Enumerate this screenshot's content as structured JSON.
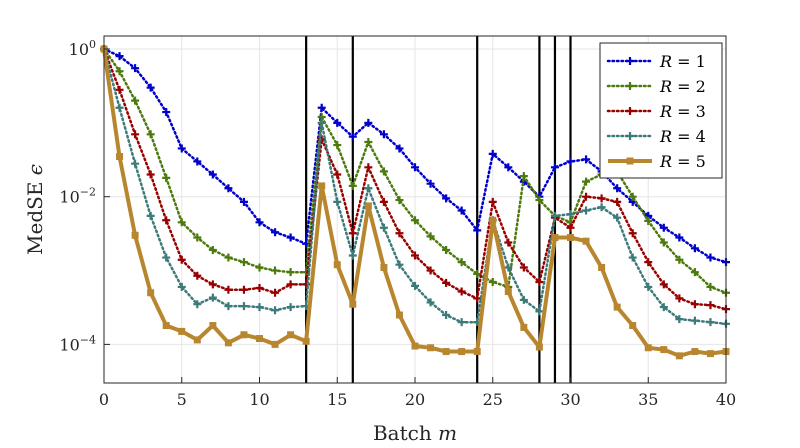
{
  "chart_data": {
    "type": "line",
    "xlabel": "Batch m",
    "ylabel": "MedSE ϵ",
    "xlim": [
      0,
      40
    ],
    "ylim": [
      3e-05,
      1.5
    ],
    "yscale": "log",
    "grid": true,
    "legend_position": "top-right",
    "xticks": [
      0,
      5,
      10,
      15,
      20,
      25,
      30,
      35,
      40
    ],
    "yticks": [
      {
        "value": 1,
        "base": "10",
        "exp": "0"
      },
      {
        "value": 0.01,
        "base": "10",
        "exp": "−2"
      },
      {
        "value": 0.0001,
        "base": "10",
        "exp": "−4"
      }
    ],
    "vlines": [
      13,
      16,
      24,
      28,
      29,
      30
    ],
    "x": [
      0,
      1,
      2,
      3,
      4,
      5,
      6,
      7,
      8,
      9,
      10,
      11,
      12,
      13,
      14,
      15,
      16,
      17,
      18,
      19,
      20,
      21,
      22,
      23,
      24,
      25,
      26,
      27,
      28,
      29,
      30,
      31,
      32,
      33,
      34,
      35,
      36,
      37,
      38,
      39,
      40
    ],
    "series": [
      {
        "name": "R = 1",
        "color": "#0000cc",
        "style": "dotted",
        "marker": "plus",
        "values": [
          1.0,
          0.8,
          0.55,
          0.3,
          0.14,
          0.045,
          0.03,
          0.02,
          0.013,
          0.0085,
          0.0045,
          0.0033,
          0.0028,
          0.0023,
          0.16,
          0.1,
          0.065,
          0.1,
          0.07,
          0.045,
          0.025,
          0.015,
          0.0095,
          0.0065,
          0.0035,
          0.038,
          0.025,
          0.016,
          0.01,
          0.025,
          0.03,
          0.032,
          0.022,
          0.013,
          0.0085,
          0.0055,
          0.0038,
          0.0028,
          0.002,
          0.0015,
          0.0013
        ]
      },
      {
        "name": "R = 2",
        "color": "#4d7a0d",
        "style": "dotted",
        "marker": "plus",
        "values": [
          1.0,
          0.5,
          0.2,
          0.07,
          0.018,
          0.0045,
          0.0028,
          0.0019,
          0.0015,
          0.0013,
          0.0011,
          0.001,
          0.00095,
          0.00095,
          0.12,
          0.05,
          0.014,
          0.055,
          0.022,
          0.009,
          0.0048,
          0.0029,
          0.0019,
          0.0013,
          0.0009,
          0.0007,
          0.0006,
          0.019,
          0.009,
          0.0055,
          0.0045,
          0.016,
          0.02,
          0.022,
          0.01,
          0.0047,
          0.0024,
          0.0014,
          0.00095,
          0.0006,
          0.0005
        ]
      },
      {
        "name": "R = 3",
        "color": "#990000",
        "style": "dotted",
        "marker": "plus",
        "values": [
          1.0,
          0.28,
          0.07,
          0.02,
          0.0048,
          0.0014,
          0.00085,
          0.00065,
          0.00055,
          0.00055,
          0.00058,
          0.0005,
          0.00065,
          0.00065,
          0.06,
          0.02,
          0.0032,
          0.025,
          0.0085,
          0.0032,
          0.0016,
          0.001,
          0.00068,
          0.00052,
          0.00042,
          0.0085,
          0.0024,
          0.0011,
          0.0007,
          0.0052,
          0.0038,
          0.01,
          0.0095,
          0.0085,
          0.0032,
          0.0013,
          0.00065,
          0.00042,
          0.00035,
          0.00034,
          0.0003
        ]
      },
      {
        "name": "R = 4",
        "color": "#3d7a7a",
        "style": "dotted",
        "marker": "plus",
        "values": [
          1.0,
          0.16,
          0.028,
          0.0055,
          0.0015,
          0.0006,
          0.00035,
          0.00043,
          0.00033,
          0.00033,
          0.00032,
          0.00029,
          0.00032,
          0.00033,
          0.1,
          0.0085,
          0.0016,
          0.013,
          0.0038,
          0.0012,
          0.00062,
          0.00037,
          0.00025,
          0.0002,
          0.0002,
          0.0048,
          0.0011,
          0.0004,
          0.00028,
          0.0055,
          0.0058,
          0.0065,
          0.0072,
          0.0052,
          0.0015,
          0.0006,
          0.00032,
          0.00022,
          0.00021,
          0.0002,
          0.00019
        ]
      },
      {
        "name": "R = 5",
        "color": "#b8862e",
        "style": "solid",
        "marker": "square",
        "values": [
          1.0,
          0.035,
          0.003,
          0.0005,
          0.00018,
          0.00015,
          0.000115,
          0.00018,
          0.000105,
          0.000135,
          0.00012,
          0.0001,
          0.000135,
          0.00011,
          0.014,
          0.0012,
          0.00035,
          0.0075,
          0.0011,
          0.00025,
          9.5e-05,
          9e-05,
          8e-05,
          8e-05,
          8e-05,
          0.0048,
          0.00052,
          0.00017,
          9.2e-05,
          0.0028,
          0.0028,
          0.0025,
          0.0011,
          0.00032,
          0.00018,
          9e-05,
          8.5e-05,
          7e-05,
          8e-05,
          7.5e-05,
          8e-05
        ]
      }
    ]
  }
}
